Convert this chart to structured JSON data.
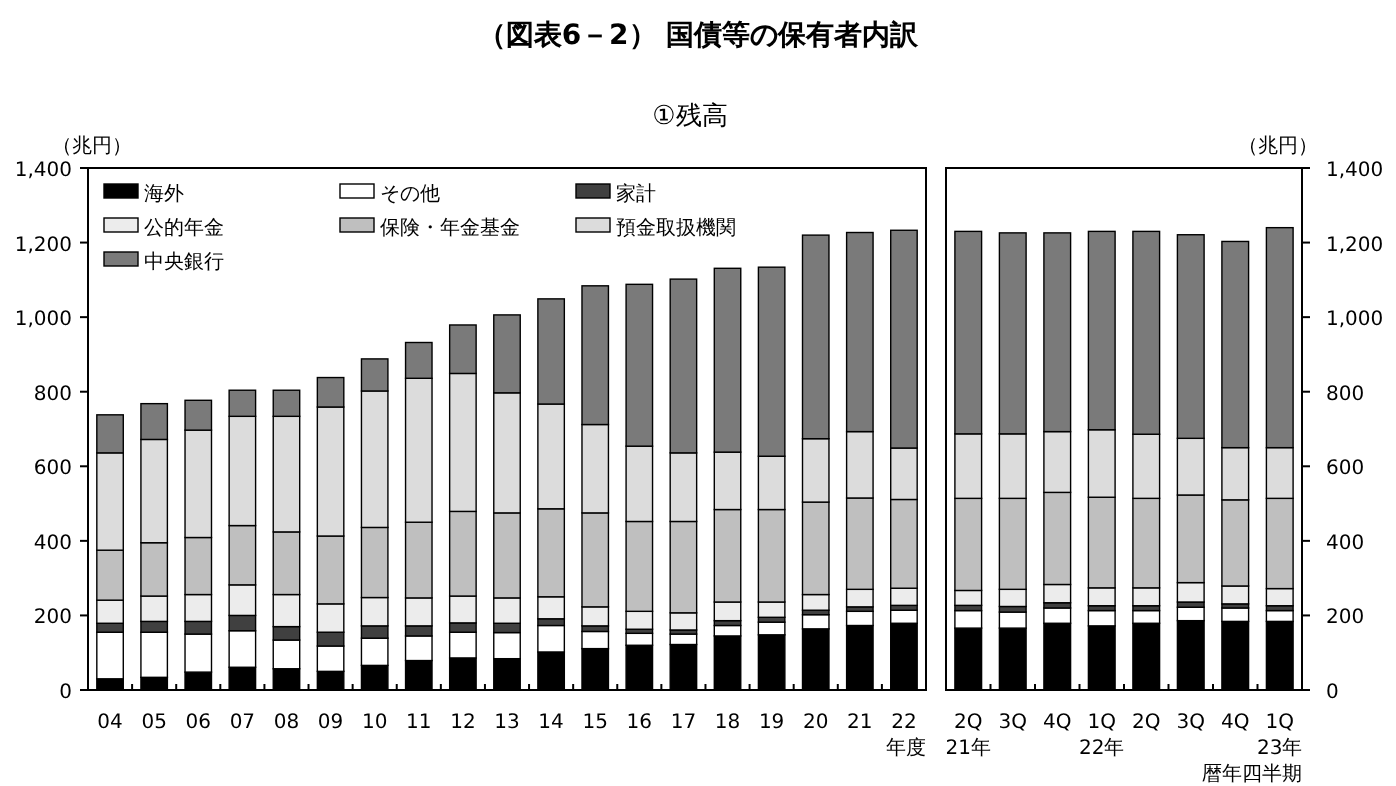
{
  "chart_data": [
    {
      "type": "bar",
      "title": "（図表6－2） 国債等の保有者内訳",
      "subtitle": "①残高",
      "ylabel": "（兆円）",
      "xlabel": "年度",
      "stacked": true,
      "legend": "top left",
      "categories": [
        "04",
        "05",
        "06",
        "07",
        "08",
        "09",
        "10",
        "11",
        "12",
        "13",
        "14",
        "15",
        "16",
        "17",
        "18",
        "19",
        "20",
        "21",
        "22"
      ],
      "ylim": [
        0,
        1400
      ],
      "yticks": [
        0,
        200,
        400,
        600,
        800,
        {
          "value": 1000,
          "label": "1,000"
        },
        {
          "value": 1200,
          "label": "1,200"
        },
        {
          "value": 1400,
          "label": "1,400"
        }
      ],
      "series": [
        {
          "name": "海外",
          "color": "#000000",
          "values": [
            30,
            34,
            48,
            61,
            57,
            50,
            66,
            79,
            86,
            84,
            102,
            111,
            120,
            122,
            145,
            148,
            164,
            173,
            179
          ]
        },
        {
          "name": "その他",
          "color": "#ffffff",
          "values": [
            125,
            121,
            102,
            98,
            77,
            68,
            73,
            66,
            69,
            70,
            71,
            46,
            32,
            28,
            28,
            34,
            38,
            38,
            35
          ]
        },
        {
          "name": "家計",
          "color": "#404040",
          "values": [
            24,
            29,
            34,
            41,
            36,
            37,
            33,
            27,
            25,
            25,
            18,
            15,
            11,
            11,
            13,
            13,
            12,
            12,
            13
          ]
        },
        {
          "name": "公的年金",
          "color": "#ececec",
          "values": [
            62,
            68,
            72,
            82,
            86,
            76,
            76,
            75,
            72,
            68,
            59,
            51,
            48,
            46,
            50,
            41,
            42,
            47,
            46
          ]
        },
        {
          "name": "保険・年金基金",
          "color": "#bfbfbf",
          "values": [
            134,
            143,
            153,
            159,
            168,
            182,
            188,
            203,
            227,
            228,
            236,
            252,
            241,
            245,
            248,
            248,
            248,
            245,
            238
          ]
        },
        {
          "name": "預金取扱機関",
          "color": "#dcdcdc",
          "values": [
            261,
            277,
            288,
            293,
            310,
            346,
            366,
            386,
            370,
            322,
            281,
            237,
            202,
            184,
            154,
            143,
            170,
            178,
            138
          ]
        },
        {
          "name": "中央銀行",
          "color": "#7a7a7a",
          "values": [
            102,
            96,
            80,
            70,
            70,
            79,
            86,
            96,
            130,
            209,
            282,
            372,
            434,
            466,
            493,
            507,
            546,
            534,
            584
          ]
        }
      ]
    },
    {
      "type": "bar",
      "y2label": "（兆円）",
      "xlabel": "暦年四半期",
      "stacked": true,
      "categories": [
        "2Q\n21年",
        "3Q",
        "4Q",
        "1Q\n22年",
        "2Q",
        "3Q",
        "4Q",
        "1Q\n23年"
      ],
      "y2lim": [
        0,
        1400
      ],
      "y2ticks": [
        0,
        200,
        400,
        600,
        800,
        {
          "value": 1000,
          "label": "1,000"
        },
        {
          "value": 1200,
          "label": "1,200"
        },
        {
          "value": 1400,
          "label": "1,400"
        }
      ],
      "series": [
        {
          "axis": "y2",
          "color": "#000000",
          "values": [
            166,
            166,
            179,
            172,
            179,
            186,
            184,
            184
          ]
        },
        {
          "axis": "y2",
          "color": "#ffffff",
          "values": [
            47,
            43,
            41,
            41,
            34,
            36,
            36,
            29
          ]
        },
        {
          "axis": "y2",
          "color": "#404040",
          "values": [
            14,
            15,
            14,
            13,
            13,
            14,
            11,
            13
          ]
        },
        {
          "axis": "y2",
          "color": "#ececec",
          "values": [
            40,
            46,
            49,
            48,
            48,
            52,
            48,
            46
          ]
        },
        {
          "axis": "y2",
          "color": "#bfbfbf",
          "values": [
            247,
            244,
            247,
            243,
            240,
            235,
            231,
            242
          ]
        },
        {
          "axis": "y2",
          "color": "#dcdcdc",
          "values": [
            173,
            173,
            163,
            181,
            172,
            152,
            140,
            136
          ]
        },
        {
          "axis": "y2",
          "color": "#7a7a7a",
          "values": [
            543,
            539,
            533,
            532,
            544,
            546,
            553,
            590
          ]
        }
      ]
    }
  ]
}
